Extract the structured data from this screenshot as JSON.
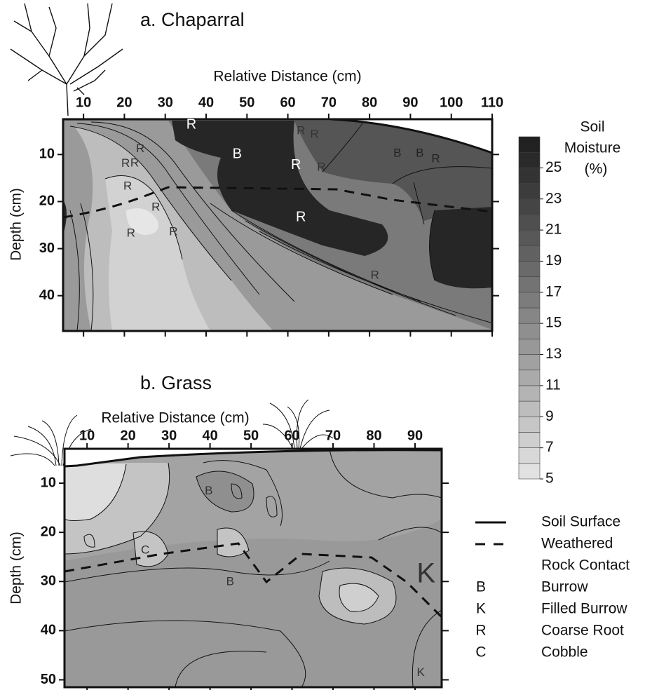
{
  "chart_data": [
    {
      "type": "contour",
      "title": "a. Chaparral",
      "xlabel": "Relative Distance (cm)",
      "ylabel": "Depth (cm)",
      "xlim": [
        5,
        110
      ],
      "xticks": [
        10,
        20,
        30,
        40,
        50,
        60,
        70,
        80,
        90,
        100,
        110
      ],
      "ylim": [
        2.5,
        47.5
      ],
      "yticks": [
        10,
        20,
        30,
        40
      ],
      "y_inverted": true,
      "annotations": [
        {
          "text": "R",
          "x": 36.4,
          "y": 3.7,
          "color": "#ffffff"
        },
        {
          "text": "B",
          "x": 47.6,
          "y": 10,
          "color": "#ffffff"
        },
        {
          "text": "R",
          "x": 63.2,
          "y": 5,
          "color": "#333333"
        },
        {
          "text": "R",
          "x": 66.5,
          "y": 5.8,
          "color": "#333333"
        },
        {
          "text": "R",
          "x": 62,
          "y": 12.3,
          "color": "#ffffff"
        },
        {
          "text": "R",
          "x": 68.2,
          "y": 12.8,
          "color": "#333333"
        },
        {
          "text": "B",
          "x": 86.8,
          "y": 9.8,
          "color": "#222222"
        },
        {
          "text": "B",
          "x": 92.3,
          "y": 9.8,
          "color": "#222222"
        },
        {
          "text": "R",
          "x": 96.2,
          "y": 11,
          "color": "#222222"
        },
        {
          "text": "R",
          "x": 23.9,
          "y": 8.8,
          "color": "#333333"
        },
        {
          "text": "R",
          "x": 20.3,
          "y": 12,
          "color": "#333333"
        },
        {
          "text": "R",
          "x": 22.5,
          "y": 11.9,
          "color": "#333333"
        },
        {
          "text": "R",
          "x": 20.8,
          "y": 16.8,
          "color": "#333333"
        },
        {
          "text": "R",
          "x": 27.7,
          "y": 21.3,
          "color": "#333333"
        },
        {
          "text": "R",
          "x": 21.6,
          "y": 26.8,
          "color": "#333333"
        },
        {
          "text": "R",
          "x": 32,
          "y": 26.5,
          "color": "#333333"
        },
        {
          "text": "R",
          "x": 63.2,
          "y": 23.4,
          "color": "#ffffff"
        },
        {
          "text": "R",
          "x": 81.3,
          "y": 35.7,
          "color": "#333333"
        }
      ]
    },
    {
      "type": "contour",
      "title": "b. Grass",
      "xlabel": "Relative Distance (cm)",
      "ylabel": "Depth (cm)",
      "xlim": [
        4.5,
        96.5
      ],
      "xticks": [
        10,
        20,
        30,
        40,
        50,
        60,
        70,
        80,
        90
      ],
      "ylim": [
        3,
        51.5
      ],
      "yticks": [
        10,
        20,
        30,
        40,
        50
      ],
      "y_inverted": true,
      "annotations": [
        {
          "text": "B",
          "x": 39.7,
          "y": 11.6,
          "color": "#333333"
        },
        {
          "text": "C",
          "x": 24.2,
          "y": 23.7,
          "color": "#333333"
        },
        {
          "text": "B",
          "x": 44.9,
          "y": 30.1,
          "color": "#333333"
        },
        {
          "text": "K",
          "x": 92.7,
          "y": 28.7,
          "color": "#333333"
        },
        {
          "text": "K",
          "x": 91.4,
          "y": 48.6,
          "color": "#333333"
        }
      ]
    }
  ],
  "colorbar": {
    "label": [
      "Soil",
      "Moisture",
      "(%)"
    ],
    "lim": [
      5,
      27
    ],
    "ticks": [
      5,
      7,
      9,
      11,
      13,
      15,
      17,
      19,
      21,
      23,
      25
    ],
    "levels": [
      5,
      6,
      7,
      8,
      9,
      10,
      11,
      12,
      13,
      14,
      15,
      16,
      17,
      18,
      19,
      20,
      21,
      22,
      23,
      24,
      25,
      26,
      27
    ],
    "colors": [
      "#e6e6e6",
      "#1c1c1c"
    ]
  },
  "legend": [
    {
      "style": "solid",
      "label": [
        "Soil Surface"
      ]
    },
    {
      "style": "dashed",
      "label": [
        "Weathered",
        "Rock Contact"
      ]
    },
    {
      "symbol": "B",
      "label": [
        "Burrow"
      ]
    },
    {
      "symbol": "K",
      "label": [
        "Filled Burrow"
      ]
    },
    {
      "symbol": "R",
      "label": [
        "Coarse Root"
      ]
    },
    {
      "symbol": "C",
      "label": [
        "Cobble"
      ]
    }
  ]
}
